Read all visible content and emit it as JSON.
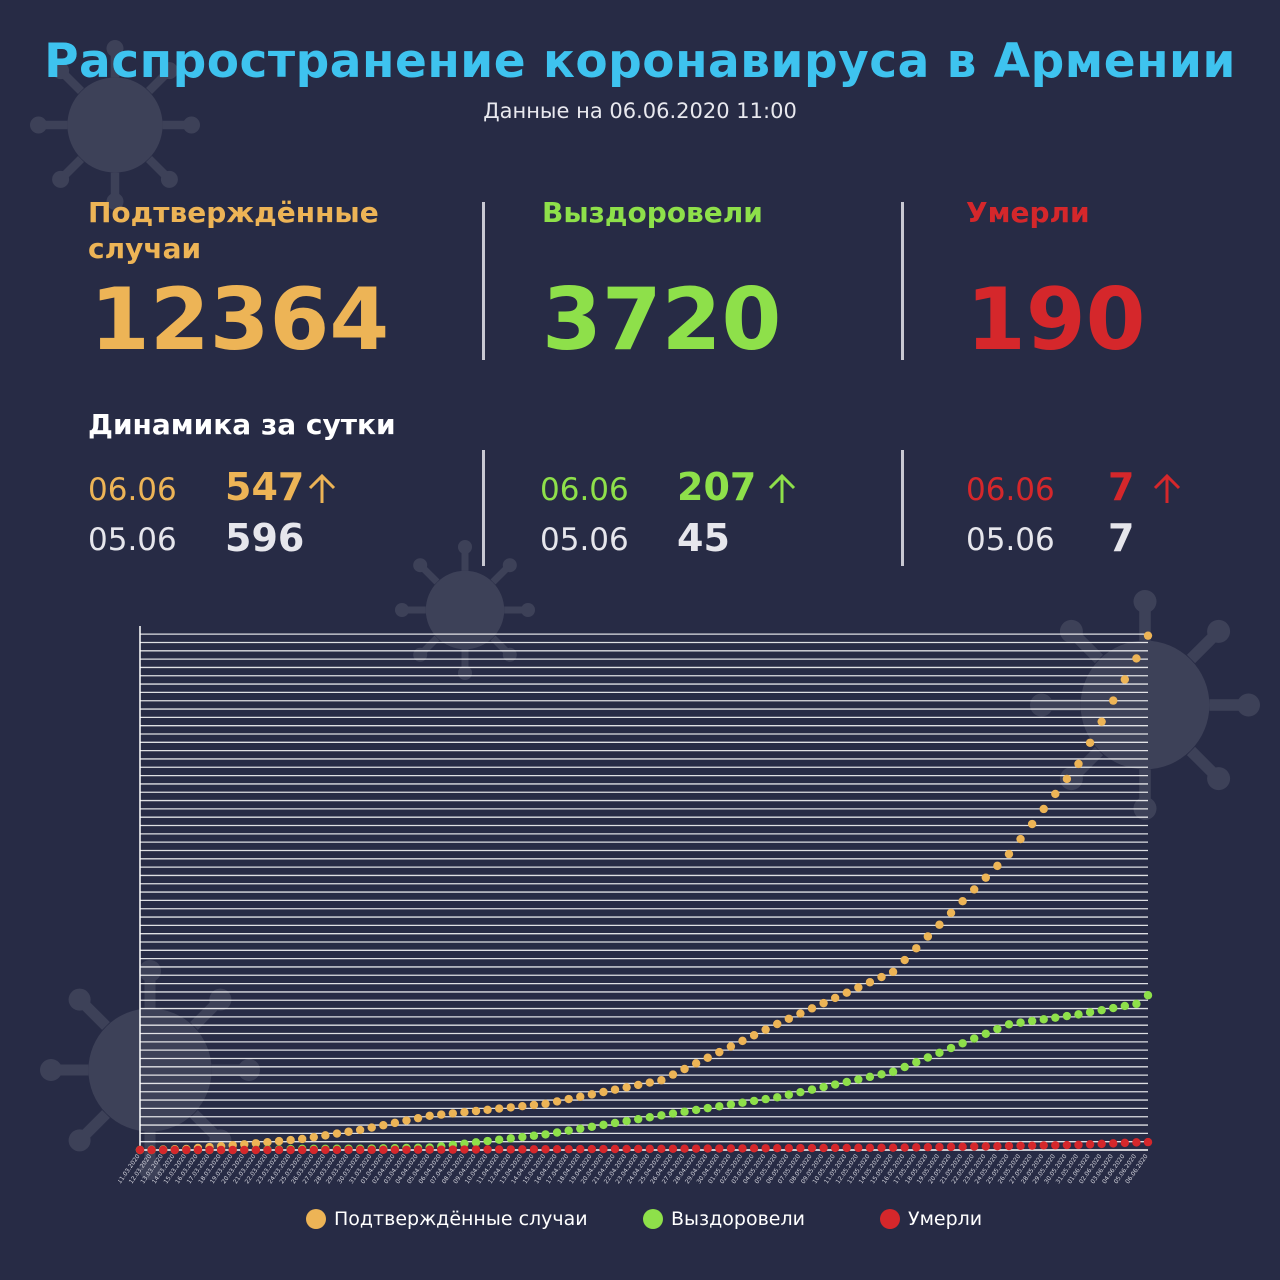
{
  "header": {
    "title": "Распространение коронавируса в Армении",
    "subtitle": "Данные на 06.06.2020 11:00"
  },
  "totals": {
    "confirmed": {
      "label_line1": "Подтверждённые",
      "label_line2": "случаи",
      "value": "12364"
    },
    "recovered": {
      "label": "Выздоровели",
      "value": "3720"
    },
    "deaths": {
      "label": "Умерли",
      "value": "190"
    }
  },
  "dynamics": {
    "title": "Динамика за сутки",
    "confirmed": {
      "date_today": "06.06",
      "value_today": "547",
      "date_prev": "05.06",
      "value_prev": "596"
    },
    "recovered": {
      "date_today": "06.06",
      "value_today": "207",
      "date_prev": "05.06",
      "value_prev": "45"
    },
    "deaths": {
      "date_today": "06.06",
      "value_today": "7",
      "date_prev": "05.06",
      "value_prev": "7"
    }
  },
  "colors": {
    "background": "#272b45",
    "title": "#3ec3ef",
    "confirmed": "#edb456",
    "recovered": "#8ee04a",
    "deaths": "#d5272b"
  },
  "icons": {
    "trend": "arrow-up-icon",
    "decor": "virus-icon"
  },
  "chart_data": {
    "type": "scatter",
    "x_start": "11.03.2020",
    "x_end": "06.06.2020",
    "ylim": [
      0,
      12500
    ],
    "grid": true,
    "legend_position": "bottom",
    "series": [
      {
        "name": "Подтверждённые случаи",
        "color": "#edb456",
        "points": [
          {
            "x": "11.03.2020",
            "y": 1
          },
          {
            "x": "15.03.2020",
            "y": 26
          },
          {
            "x": "20.03.2020",
            "y": 136
          },
          {
            "x": "25.03.2020",
            "y": 265
          },
          {
            "x": "30.03.2020",
            "y": 482
          },
          {
            "x": "05.04.2020",
            "y": 822
          },
          {
            "x": "15.04.2020",
            "y": 1111
          },
          {
            "x": "25.04.2020",
            "y": 1677
          },
          {
            "x": "05.05.2020",
            "y": 3029
          },
          {
            "x": "15.05.2020",
            "y": 4283
          },
          {
            "x": "25.05.2020",
            "y": 7113
          },
          {
            "x": "31.05.2020",
            "y": 9282
          },
          {
            "x": "05.06.2020",
            "y": 11817
          },
          {
            "x": "06.06.2020",
            "y": 12364
          }
        ]
      },
      {
        "name": "Выздоровели",
        "color": "#8ee04a",
        "points": [
          {
            "x": "11.03.2020",
            "y": 0
          },
          {
            "x": "20.03.2020",
            "y": 1
          },
          {
            "x": "25.03.2020",
            "y": 28
          },
          {
            "x": "30.03.2020",
            "y": 31
          },
          {
            "x": "05.04.2020",
            "y": 57
          },
          {
            "x": "15.04.2020",
            "y": 375
          },
          {
            "x": "25.04.2020",
            "y": 833
          },
          {
            "x": "05.05.2020",
            "y": 1267
          },
          {
            "x": "15.05.2020",
            "y": 1881
          },
          {
            "x": "25.05.2020",
            "y": 3022
          },
          {
            "x": "31.05.2020",
            "y": 3260
          },
          {
            "x": "05.06.2020",
            "y": 3513
          },
          {
            "x": "06.06.2020",
            "y": 3720
          }
        ]
      },
      {
        "name": "Умерли",
        "color": "#d5272b",
        "points": [
          {
            "x": "11.03.2020",
            "y": 0
          },
          {
            "x": "25.03.2020",
            "y": 0
          },
          {
            "x": "30.03.2020",
            "y": 3
          },
          {
            "x": "05.04.2020",
            "y": 7
          },
          {
            "x": "15.04.2020",
            "y": 18
          },
          {
            "x": "25.04.2020",
            "y": 28
          },
          {
            "x": "05.05.2020",
            "y": 43
          },
          {
            "x": "15.05.2020",
            "y": 55
          },
          {
            "x": "25.05.2020",
            "y": 95
          },
          {
            "x": "31.05.2020",
            "y": 123
          },
          {
            "x": "05.06.2020",
            "y": 183
          },
          {
            "x": "06.06.2020",
            "y": 190
          }
        ]
      }
    ]
  }
}
